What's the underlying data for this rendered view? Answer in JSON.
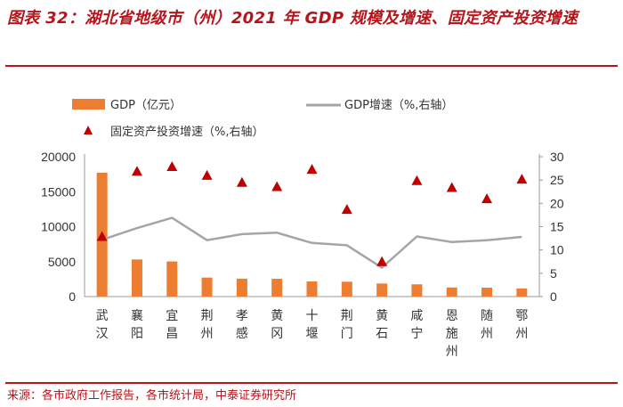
{
  "title": "图表 32：湖北省地级市（州）2021 年 GDP 规模及增速、固定资产投资增速",
  "source": "来源：各市政府工作报告，各市统计局，中泰证券研究所",
  "colors": {
    "bar": "#ed7d31",
    "line": "#a5a5a5",
    "marker": "#c00000",
    "accent": "#b7151b"
  },
  "chart_data": {
    "type": "bar",
    "categories": [
      "武汉",
      "襄阳",
      "宜昌",
      "荆州",
      "孝感",
      "黄冈",
      "十堰",
      "荆门",
      "黄石",
      "咸宁",
      "恩施州",
      "随州",
      "鄂州"
    ],
    "series": [
      {
        "name": "GDP（亿元）",
        "type": "bar",
        "axis": "left",
        "values": [
          17717,
          5309,
          5023,
          2715,
          2562,
          2541,
          2163,
          2121,
          1866,
          1752,
          1302,
          1271,
          1162
        ]
      },
      {
        "name": "GDP增速（%,右轴）",
        "type": "line",
        "axis": "right",
        "values": [
          12.2,
          14.7,
          16.9,
          12.1,
          13.4,
          13.7,
          11.5,
          11.0,
          6.2,
          12.9,
          11.7,
          12.1,
          12.8
        ]
      },
      {
        "name": "固定资产投资增速（%,右轴）",
        "type": "scatter",
        "axis": "right",
        "values": [
          12.9,
          26.9,
          27.9,
          26.0,
          24.5,
          23.6,
          27.3,
          18.7,
          7.5,
          24.9,
          23.4,
          21.0,
          25.2
        ]
      }
    ],
    "ylim_left": [
      0,
      20000
    ],
    "yticks_left": [
      "0",
      "5000",
      "10000",
      "15000",
      "20000"
    ],
    "ylim_right": [
      0,
      30
    ],
    "yticks_right": [
      "0",
      "5",
      "10",
      "15",
      "20",
      "25",
      "30"
    ],
    "legend": [
      "GDP（亿元）",
      "GDP增速（%,右轴）",
      "固定资产投资增速（%,右轴）"
    ]
  }
}
